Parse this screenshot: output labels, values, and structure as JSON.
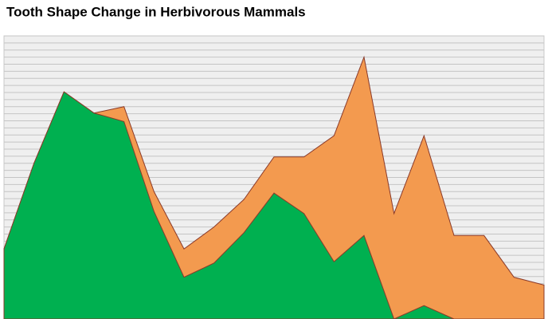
{
  "chart_data": {
    "type": "area",
    "title": "Tooth Shape Change in Herbivorous Mammals",
    "categories": [
      null,
      null,
      null,
      null,
      null,
      null,
      null,
      null,
      null,
      null,
      null,
      null,
      null,
      null,
      null,
      null,
      null,
      null,
      null
    ],
    "series": [
      {
        "name": null,
        "color": "#f39a4f",
        "values": [
          9.9,
          22,
          32.1,
          29.1,
          30.0,
          18.0,
          9.9,
          13.0,
          16.9,
          22.9,
          22.9,
          25.9,
          37.0,
          14.9,
          25.9,
          11.8,
          11.8,
          5.9,
          4.8
        ]
      },
      {
        "name": null,
        "color": "#00b050",
        "values": [
          9.9,
          22,
          32.1,
          29.1,
          27.9,
          15.2,
          5.9,
          7.9,
          12.2,
          17.8,
          14.9,
          8.1,
          11.8,
          0,
          1.9,
          0,
          0,
          0,
          0
        ]
      }
    ],
    "ylim": [
      0,
      40
    ],
    "yticks": [
      0,
      1,
      2,
      3,
      4,
      5,
      6,
      7,
      8,
      9,
      10,
      11,
      12,
      13,
      14,
      15,
      16,
      17,
      18,
      19,
      20,
      21,
      22,
      23,
      24,
      25,
      26,
      27,
      28,
      29,
      30,
      31,
      32,
      33,
      34,
      35,
      36,
      37,
      38,
      39,
      40
    ],
    "grid": true
  }
}
